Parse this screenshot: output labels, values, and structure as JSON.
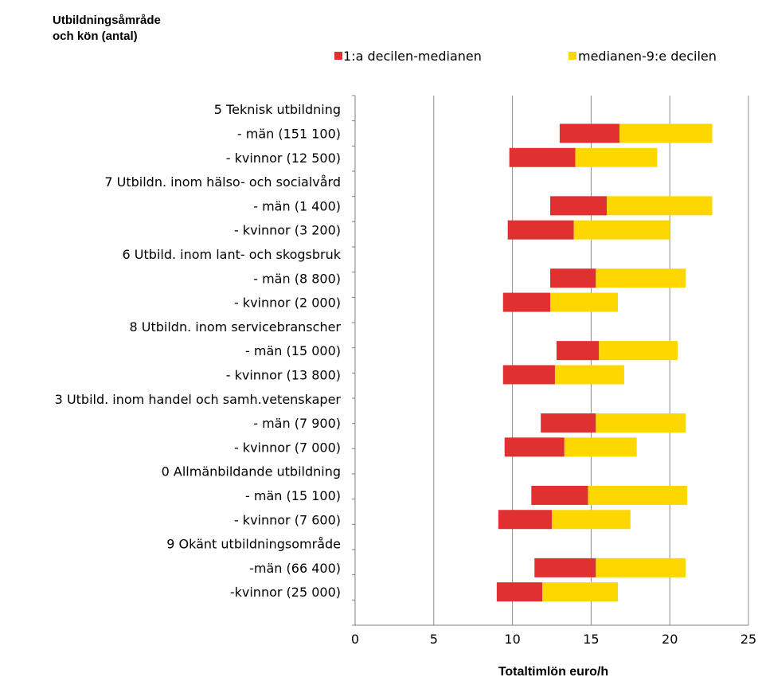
{
  "chart_data": {
    "type": "bar",
    "orientation": "horizontal",
    "stacked": true,
    "title_lines": [
      "Utbildningsåmråde",
      "och kön (antal)"
    ],
    "xlabel": "Totaltimlön euro/h",
    "xlim": [
      0,
      25
    ],
    "xticks": [
      "0",
      "5",
      "10",
      "15",
      "20",
      "25"
    ],
    "grid": true,
    "legend_position": "top",
    "categories": [
      "5 Teknisk  utbildning",
      "- män (151 100)",
      "- kvinnor (12 500)",
      "7 Utbildn. inom hälso- och socialvård",
      "- män (1 400)",
      "- kvinnor (3 200)",
      "6 Utbild. inom lant- och skogsbruk",
      "- män (8 800)",
      "- kvinnor (2 000)",
      "8 Utbildn. inom servicebranscher",
      "- män (15 000)",
      "- kvinnor (13 800)",
      "3 Utbild. inom handel och samh.vetenskaper",
      "-  män (7 900)",
      "- kvinnor (7 000)",
      "0 Allmänbildande utbildning",
      "- män (15 100)",
      "- kvinnor (7 600)",
      "9 Okänt  utbildningsområde",
      "-män (66 400)",
      "-kvinnor (25 000)"
    ],
    "decile1": [
      null,
      13.0,
      9.8,
      null,
      12.4,
      9.7,
      null,
      12.4,
      9.4,
      null,
      12.8,
      9.4,
      null,
      11.8,
      9.5,
      null,
      11.2,
      9.1,
      null,
      11.4,
      9.0
    ],
    "median": [
      null,
      16.8,
      14.0,
      null,
      16.0,
      13.9,
      null,
      15.3,
      12.4,
      null,
      15.5,
      12.7,
      null,
      15.3,
      13.3,
      null,
      14.8,
      12.5,
      null,
      15.3,
      11.9
    ],
    "decile9": [
      null,
      22.7,
      19.2,
      null,
      22.7,
      20.0,
      null,
      21.0,
      16.7,
      null,
      20.5,
      17.1,
      null,
      21.0,
      17.9,
      null,
      21.1,
      17.5,
      null,
      21.0,
      16.7
    ],
    "series": [
      {
        "name": "1:a decilen-medianen",
        "color": "#e03030"
      },
      {
        "name": "medianen-9:e decilen",
        "color": "#ffd700"
      }
    ]
  }
}
